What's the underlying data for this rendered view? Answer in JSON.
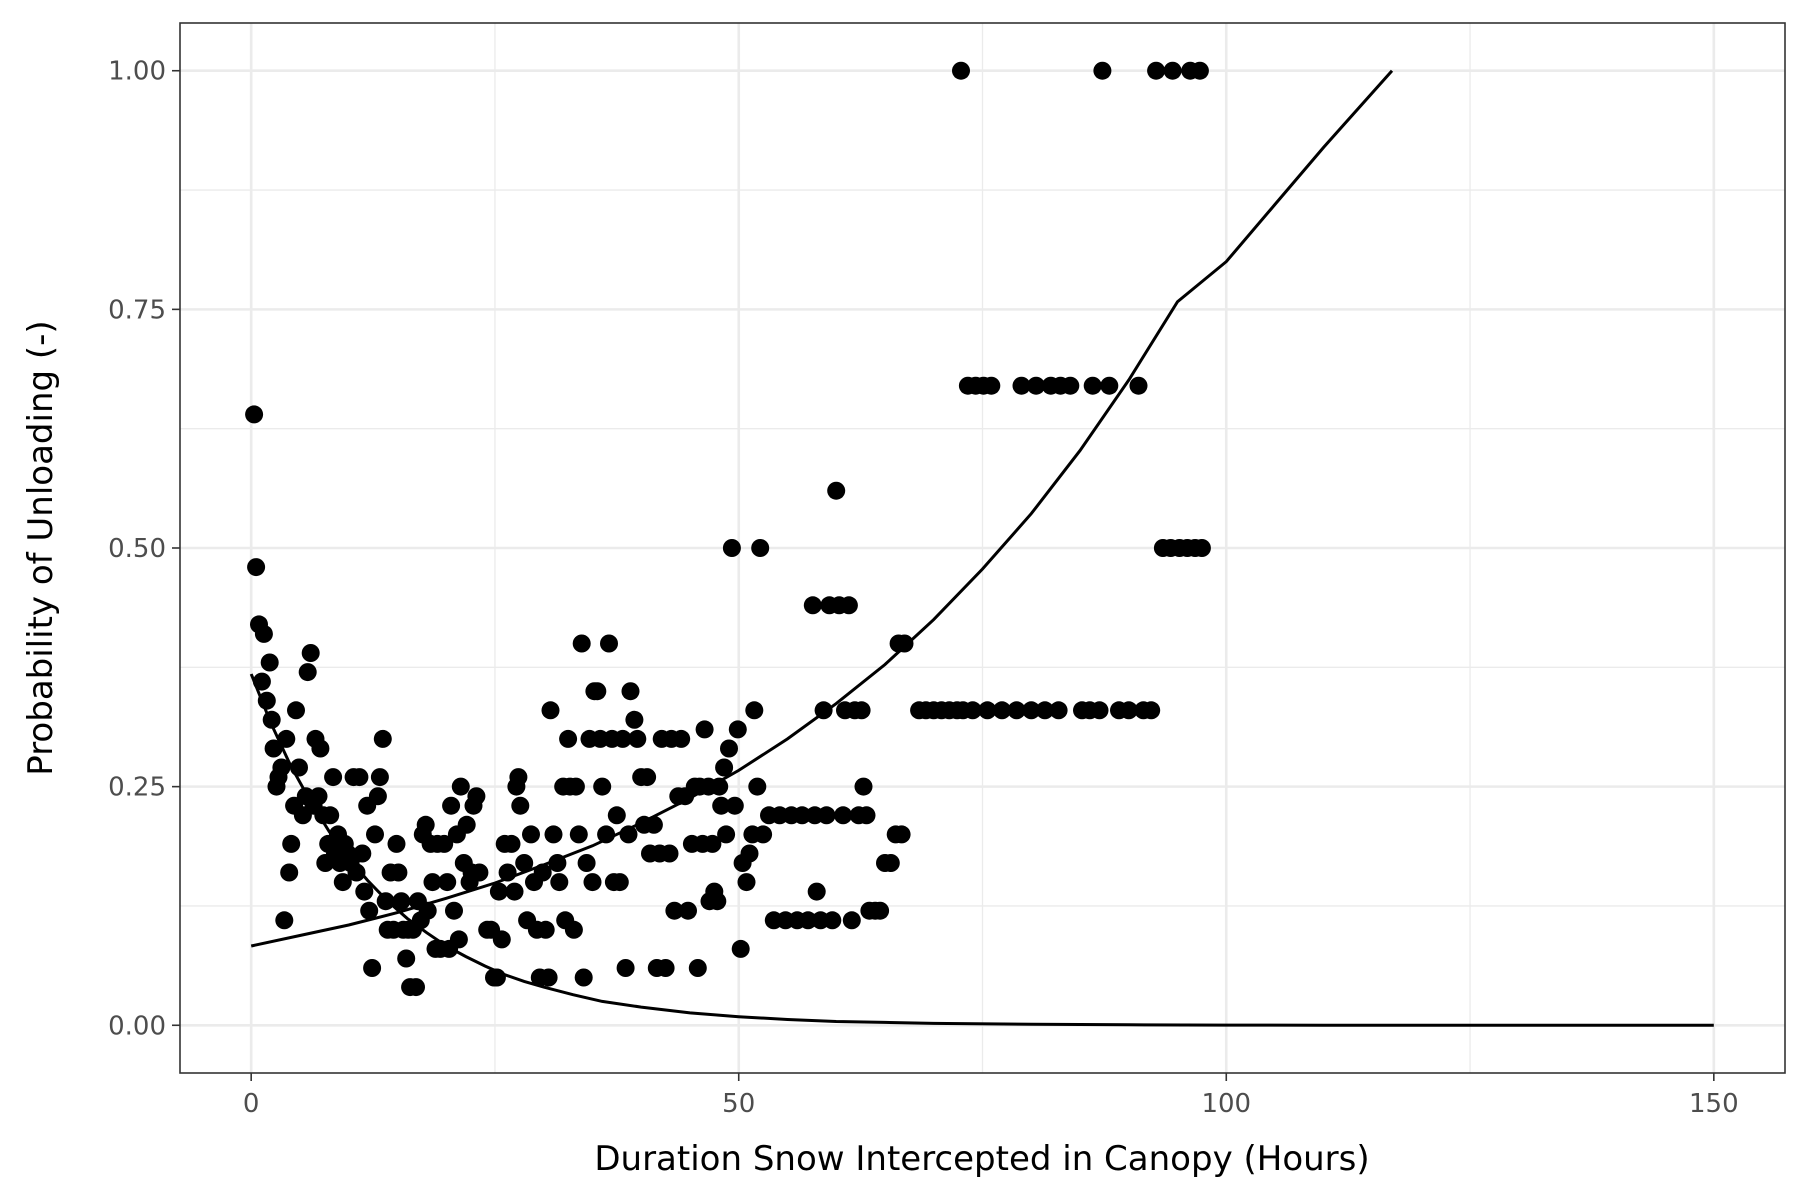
{
  "chart_data": {
    "type": "scatter",
    "xlabel": "Duration Snow Intercepted in Canopy (Hours)",
    "ylabel": "Probability of Unloading (-)",
    "xlim": [
      -7.3,
      157.3
    ],
    "ylim": [
      -0.05,
      1.05
    ],
    "x_ticks": [
      0,
      50,
      100,
      150
    ],
    "y_ticks": [
      0.0,
      0.25,
      0.5,
      0.75,
      1.0
    ],
    "x_tick_labels": [
      "0",
      "50",
      "100",
      "150"
    ],
    "y_tick_labels": [
      "0.00",
      "0.25",
      "0.50",
      "0.75",
      "1.00"
    ],
    "grid": true,
    "legend": "none",
    "colors": {
      "points": "#000000",
      "curves": "#000000",
      "panel_border": "#333333",
      "grid": "#ebebeb"
    },
    "points": [
      [
        0.3,
        0.64
      ],
      [
        0.5,
        0.48
      ],
      [
        0.8,
        0.42
      ],
      [
        1.1,
        0.36
      ],
      [
        1.3,
        0.41
      ],
      [
        1.6,
        0.34
      ],
      [
        1.9,
        0.38
      ],
      [
        2.1,
        0.32
      ],
      [
        2.3,
        0.29
      ],
      [
        2.6,
        0.25
      ],
      [
        2.8,
        0.26
      ],
      [
        3.1,
        0.27
      ],
      [
        3.4,
        0.11
      ],
      [
        3.6,
        0.3
      ],
      [
        3.9,
        0.16
      ],
      [
        4.1,
        0.19
      ],
      [
        4.4,
        0.23
      ],
      [
        4.6,
        0.33
      ],
      [
        4.9,
        0.27
      ],
      [
        5.3,
        0.22
      ],
      [
        5.6,
        0.24
      ],
      [
        5.8,
        0.37
      ],
      [
        6.1,
        0.39
      ],
      [
        6.4,
        0.23
      ],
      [
        6.6,
        0.3
      ],
      [
        6.9,
        0.24
      ],
      [
        7.1,
        0.29
      ],
      [
        7.4,
        0.22
      ],
      [
        7.6,
        0.17
      ],
      [
        7.9,
        0.19
      ],
      [
        8.1,
        0.22
      ],
      [
        8.4,
        0.26
      ],
      [
        8.6,
        0.18
      ],
      [
        8.9,
        0.2
      ],
      [
        9.1,
        0.17
      ],
      [
        9.4,
        0.15
      ],
      [
        9.6,
        0.19
      ],
      [
        9.9,
        0.18
      ],
      [
        10.2,
        0.17
      ],
      [
        10.5,
        0.26
      ],
      [
        10.8,
        0.16
      ],
      [
        11.1,
        0.26
      ],
      [
        11.4,
        0.18
      ],
      [
        11.6,
        0.14
      ],
      [
        11.9,
        0.23
      ],
      [
        12.1,
        0.12
      ],
      [
        12.4,
        0.06
      ],
      [
        12.7,
        0.2
      ],
      [
        13.0,
        0.24
      ],
      [
        13.2,
        0.26
      ],
      [
        13.5,
        0.3
      ],
      [
        13.8,
        0.13
      ],
      [
        14.0,
        0.1
      ],
      [
        14.3,
        0.16
      ],
      [
        14.6,
        0.1
      ],
      [
        14.9,
        0.19
      ],
      [
        15.1,
        0.16
      ],
      [
        15.4,
        0.13
      ],
      [
        15.6,
        0.1
      ],
      [
        15.9,
        0.07
      ],
      [
        16.1,
        0.1
      ],
      [
        16.3,
        0.04
      ],
      [
        16.6,
        0.1
      ],
      [
        16.9,
        0.04
      ],
      [
        17.1,
        0.13
      ],
      [
        17.4,
        0.11
      ],
      [
        17.6,
        0.2
      ],
      [
        17.9,
        0.21
      ],
      [
        18.1,
        0.12
      ],
      [
        18.4,
        0.19
      ],
      [
        18.6,
        0.15
      ],
      [
        18.9,
        0.08
      ],
      [
        19.1,
        0.19
      ],
      [
        19.4,
        0.08
      ],
      [
        19.8,
        0.19
      ],
      [
        20.1,
        0.15
      ],
      [
        20.3,
        0.08
      ],
      [
        20.5,
        0.23
      ],
      [
        20.8,
        0.12
      ],
      [
        21.1,
        0.2
      ],
      [
        21.3,
        0.09
      ],
      [
        21.5,
        0.25
      ],
      [
        21.8,
        0.17
      ],
      [
        22.1,
        0.21
      ],
      [
        22.4,
        0.15
      ],
      [
        22.6,
        0.16
      ],
      [
        22.8,
        0.23
      ],
      [
        23.1,
        0.24
      ],
      [
        23.4,
        0.16
      ],
      [
        24.2,
        0.1
      ],
      [
        24.6,
        0.1
      ],
      [
        24.9,
        0.05
      ],
      [
        25.2,
        0.05
      ],
      [
        25.4,
        0.14
      ],
      [
        25.7,
        0.09
      ],
      [
        26.0,
        0.19
      ],
      [
        26.3,
        0.16
      ],
      [
        26.7,
        0.19
      ],
      [
        27.0,
        0.14
      ],
      [
        27.2,
        0.25
      ],
      [
        27.4,
        0.26
      ],
      [
        27.6,
        0.23
      ],
      [
        28.0,
        0.17
      ],
      [
        28.3,
        0.11
      ],
      [
        28.7,
        0.2
      ],
      [
        29.0,
        0.15
      ],
      [
        29.3,
        0.1
      ],
      [
        29.6,
        0.05
      ],
      [
        29.9,
        0.16
      ],
      [
        30.2,
        0.1
      ],
      [
        30.5,
        0.05
      ],
      [
        30.7,
        0.33
      ],
      [
        31.0,
        0.2
      ],
      [
        31.4,
        0.17
      ],
      [
        31.6,
        0.15
      ],
      [
        32.0,
        0.25
      ],
      [
        32.2,
        0.11
      ],
      [
        32.5,
        0.3
      ],
      [
        32.7,
        0.25
      ],
      [
        33.1,
        0.1
      ],
      [
        33.3,
        0.25
      ],
      [
        33.6,
        0.2
      ],
      [
        33.9,
        0.4
      ],
      [
        34.1,
        0.05
      ],
      [
        34.4,
        0.17
      ],
      [
        34.7,
        0.3
      ],
      [
        35.0,
        0.15
      ],
      [
        35.2,
        0.35
      ],
      [
        35.5,
        0.35
      ],
      [
        35.8,
        0.3
      ],
      [
        36.0,
        0.25
      ],
      [
        36.4,
        0.2
      ],
      [
        36.7,
        0.4
      ],
      [
        37.0,
        0.3
      ],
      [
        37.2,
        0.15
      ],
      [
        37.5,
        0.22
      ],
      [
        37.8,
        0.15
      ],
      [
        38.1,
        0.3
      ],
      [
        38.4,
        0.06
      ],
      [
        38.7,
        0.2
      ],
      [
        38.9,
        0.35
      ],
      [
        39.3,
        0.32
      ],
      [
        39.6,
        0.3
      ],
      [
        40.0,
        0.26
      ],
      [
        40.3,
        0.21
      ],
      [
        40.6,
        0.26
      ],
      [
        40.9,
        0.18
      ],
      [
        41.3,
        0.21
      ],
      [
        41.6,
        0.06
      ],
      [
        41.9,
        0.18
      ],
      [
        42.1,
        0.3
      ],
      [
        42.5,
        0.06
      ],
      [
        42.9,
        0.18
      ],
      [
        43.1,
        0.3
      ],
      [
        43.4,
        0.12
      ],
      [
        43.8,
        0.24
      ],
      [
        44.1,
        0.3
      ],
      [
        44.5,
        0.24
      ],
      [
        44.8,
        0.12
      ],
      [
        45.2,
        0.19
      ],
      [
        45.5,
        0.25
      ],
      [
        45.8,
        0.06
      ],
      [
        46.0,
        0.25
      ],
      [
        46.3,
        0.19
      ],
      [
        46.5,
        0.31
      ],
      [
        46.9,
        0.25
      ],
      [
        47.0,
        0.13
      ],
      [
        47.3,
        0.19
      ],
      [
        47.5,
        0.14
      ],
      [
        47.8,
        0.13
      ],
      [
        48.0,
        0.25
      ],
      [
        48.2,
        0.23
      ],
      [
        48.5,
        0.27
      ],
      [
        48.7,
        0.2
      ],
      [
        49.0,
        0.29
      ],
      [
        49.3,
        0.5
      ],
      [
        49.6,
        0.23
      ],
      [
        49.9,
        0.31
      ],
      [
        50.2,
        0.08
      ],
      [
        50.4,
        0.17
      ],
      [
        50.8,
        0.15
      ],
      [
        51.1,
        0.18
      ],
      [
        51.4,
        0.2
      ],
      [
        51.6,
        0.33
      ],
      [
        51.9,
        0.25
      ],
      [
        52.2,
        0.5
      ],
      [
        52.5,
        0.2
      ],
      [
        53.1,
        0.22
      ],
      [
        53.6,
        0.11
      ],
      [
        54.2,
        0.22
      ],
      [
        54.8,
        0.11
      ],
      [
        55.4,
        0.22
      ],
      [
        56.0,
        0.11
      ],
      [
        56.5,
        0.22
      ],
      [
        57.1,
        0.11
      ],
      [
        57.6,
        0.44
      ],
      [
        57.8,
        0.22
      ],
      [
        58.0,
        0.14
      ],
      [
        58.4,
        0.11
      ],
      [
        58.7,
        0.33
      ],
      [
        59.0,
        0.22
      ],
      [
        59.3,
        0.44
      ],
      [
        59.6,
        0.11
      ],
      [
        60.0,
        0.56
      ],
      [
        60.3,
        0.44
      ],
      [
        60.7,
        0.22
      ],
      [
        60.9,
        0.33
      ],
      [
        61.3,
        0.44
      ],
      [
        61.6,
        0.11
      ],
      [
        61.9,
        0.33
      ],
      [
        62.3,
        0.22
      ],
      [
        62.6,
        0.33
      ],
      [
        62.8,
        0.25
      ],
      [
        63.1,
        0.22
      ],
      [
        63.4,
        0.12
      ],
      [
        64.0,
        0.12
      ],
      [
        64.5,
        0.12
      ],
      [
        65.0,
        0.17
      ],
      [
        65.6,
        0.17
      ],
      [
        66.1,
        0.2
      ],
      [
        66.4,
        0.4
      ],
      [
        66.7,
        0.2
      ],
      [
        67.0,
        0.4
      ],
      [
        68.5,
        0.33
      ],
      [
        69.2,
        0.33
      ],
      [
        70.0,
        0.33
      ],
      [
        70.8,
        0.33
      ],
      [
        71.6,
        0.33
      ],
      [
        72.4,
        0.33
      ],
      [
        72.8,
        1.0
      ],
      [
        73.0,
        0.33
      ],
      [
        73.5,
        0.67
      ],
      [
        74.3,
        0.67
      ],
      [
        75.1,
        0.67
      ],
      [
        75.9,
        0.67
      ],
      [
        74.0,
        0.33
      ],
      [
        75.5,
        0.33
      ],
      [
        77.0,
        0.33
      ],
      [
        78.5,
        0.33
      ],
      [
        79.0,
        0.67
      ],
      [
        80.0,
        0.33
      ],
      [
        80.5,
        0.67
      ],
      [
        81.4,
        0.33
      ],
      [
        82.0,
        0.67
      ],
      [
        82.8,
        0.33
      ],
      [
        83.0,
        0.67
      ],
      [
        84.0,
        0.67
      ],
      [
        85.2,
        0.33
      ],
      [
        86.0,
        0.33
      ],
      [
        86.3,
        0.67
      ],
      [
        87.0,
        0.33
      ],
      [
        87.3,
        1.0
      ],
      [
        88.0,
        0.67
      ],
      [
        89.0,
        0.33
      ],
      [
        90.0,
        0.33
      ],
      [
        91.0,
        0.67
      ],
      [
        91.5,
        0.33
      ],
      [
        92.3,
        0.33
      ],
      [
        92.8,
        1.0
      ],
      [
        93.5,
        0.5
      ],
      [
        94.3,
        0.5
      ],
      [
        94.5,
        1.0
      ],
      [
        95.2,
        0.5
      ],
      [
        96.0,
        0.5
      ],
      [
        96.3,
        1.0
      ],
      [
        96.8,
        0.5
      ],
      [
        97.3,
        1.0
      ],
      [
        97.5,
        0.5
      ]
    ],
    "decay_curve": {
      "x": [
        0,
        2,
        4,
        6,
        8,
        10,
        12,
        14,
        16,
        18,
        20,
        22,
        24,
        26,
        28,
        30,
        33,
        36,
        40,
        45,
        50,
        55,
        60,
        65,
        70,
        80,
        90,
        100,
        110,
        120,
        130,
        140,
        150
      ],
      "y": [
        0.368,
        0.317,
        0.273,
        0.236,
        0.203,
        0.175,
        0.151,
        0.13,
        0.112,
        0.097,
        0.083,
        0.072,
        0.062,
        0.053,
        0.046,
        0.04,
        0.032,
        0.025,
        0.019,
        0.013,
        0.009,
        0.006,
        0.004,
        0.003,
        0.002,
        0.0011,
        0.0005,
        0.0002,
        0.0001,
        5e-05,
        2e-05,
        1e-05,
        0.0
      ]
    },
    "growth_curve": {
      "x": [
        0,
        5,
        10,
        15,
        20,
        25,
        30,
        35,
        40,
        45,
        50,
        55,
        60,
        65,
        70,
        75,
        80,
        85,
        90,
        95,
        100,
        105,
        110,
        117
      ],
      "y": [
        0.083,
        0.094,
        0.105,
        0.118,
        0.133,
        0.149,
        0.168,
        0.188,
        0.212,
        0.238,
        0.267,
        0.3,
        0.337,
        0.378,
        0.425,
        0.478,
        0.536,
        0.602,
        0.676,
        0.758,
        0.8,
        0.86,
        0.92,
        1.0
      ]
    }
  }
}
